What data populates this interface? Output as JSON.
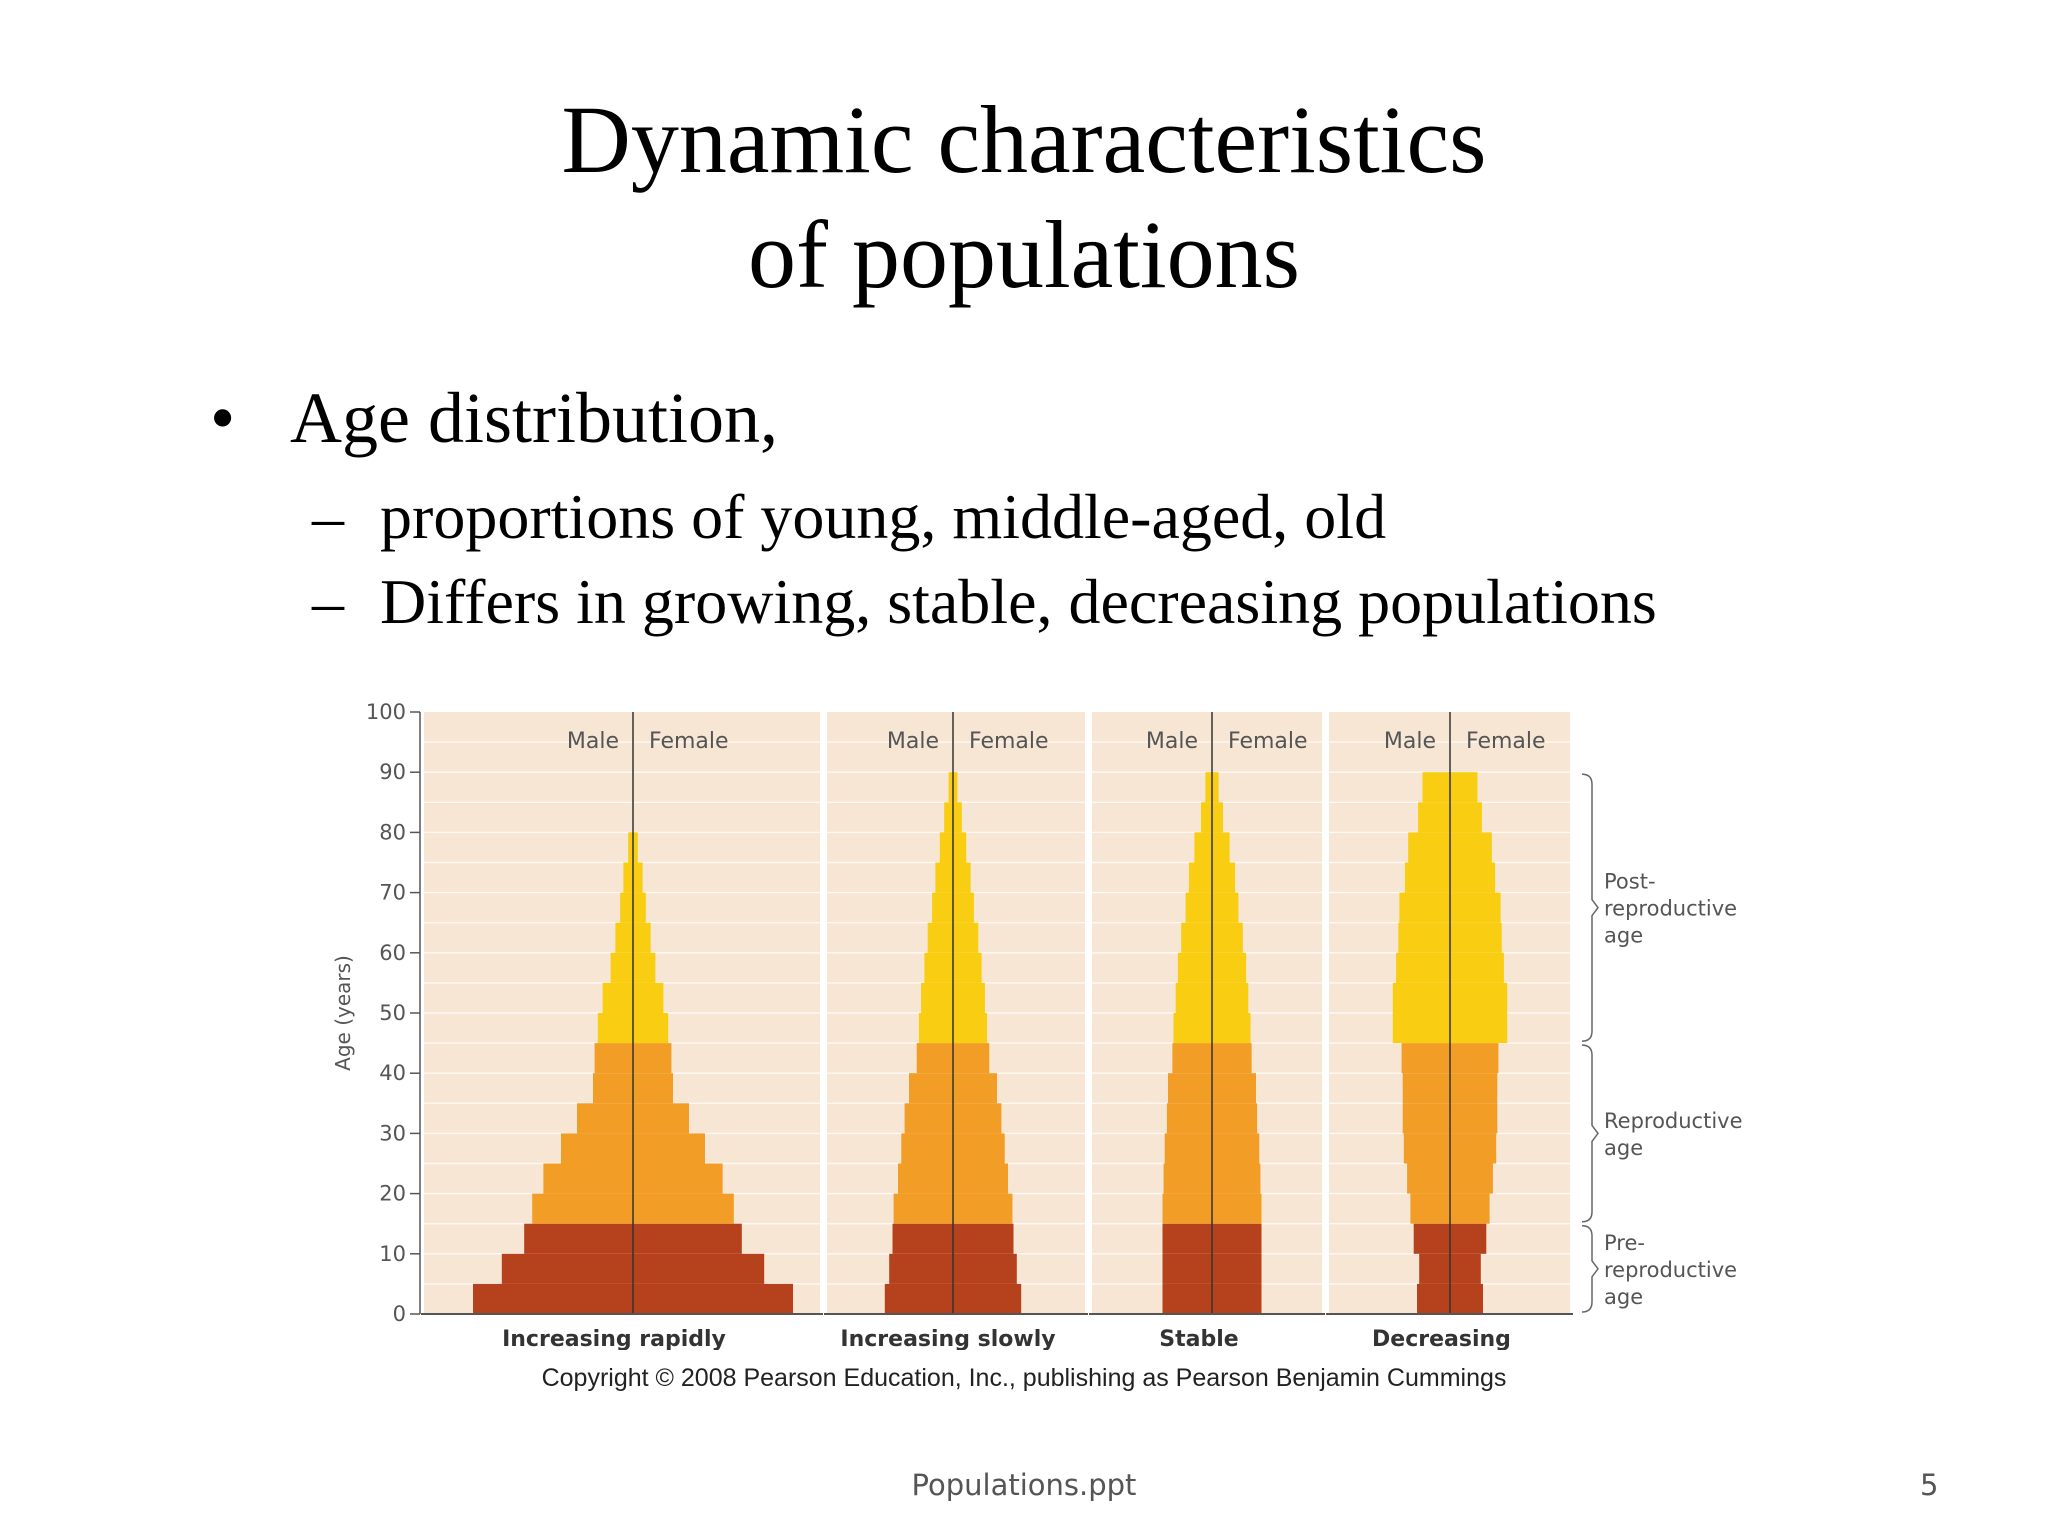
{
  "slide": {
    "title_line1": "Dynamic characteristics",
    "title_line2": "of populations",
    "bullet_mark": "•",
    "bullet": "Age distribution,",
    "dash_mark": "–",
    "sub_bullets": [
      "proportions of young, middle-aged, old",
      "Differs in growing, stable, decreasing populations"
    ],
    "copyright": "Copyright © 2008 Pearson Education, Inc., publishing as Pearson Benjamin Cummings",
    "footer": "Populations.ppt",
    "page_number": "5"
  },
  "chart_data": {
    "type": "bar",
    "subtype": "population-pyramid",
    "ylabel": "Age (years)",
    "ylim": [
      0,
      100
    ],
    "yticks": [
      0,
      10,
      20,
      30,
      40,
      50,
      60,
      70,
      80,
      90,
      100
    ],
    "age_groups": [
      "0-5",
      "5-10",
      "10-15",
      "15-20",
      "20-25",
      "25-30",
      "30-35",
      "35-40",
      "40-45",
      "45-50",
      "50-55",
      "55-60",
      "60-65",
      "65-70",
      "70-75",
      "75-80",
      "80-85",
      "85-90"
    ],
    "half_width_units": "relative proportion per sex (0-1 scale, symmetric male/female)",
    "sex_labels": {
      "male": "Male",
      "female": "Female"
    },
    "colors": {
      "pre_reproductive": "#b5421c",
      "reproductive": "#f29d26",
      "post_reproductive": "#f9cd12",
      "background": "#f8e6d4",
      "axis": "#555555"
    },
    "life_stages": [
      {
        "label": "Post-\nreproductive\nage",
        "lines": [
          "Post-",
          "reproductive",
          "age"
        ],
        "range": [
          45,
          90
        ]
      },
      {
        "label": "Reproductive\nage",
        "lines": [
          "Reproductive",
          "age"
        ],
        "range": [
          15,
          45
        ]
      },
      {
        "label": "Pre-\nreproductive\nage",
        "lines": [
          "Pre-",
          "reproductive",
          "age"
        ],
        "range": [
          0,
          15
        ]
      }
    ],
    "pyramids": [
      {
        "name": "Increasing rapidly",
        "half_widths": [
          1.0,
          0.82,
          0.68,
          0.63,
          0.56,
          0.45,
          0.35,
          0.25,
          0.24,
          0.22,
          0.19,
          0.14,
          0.11,
          0.08,
          0.06,
          0.03,
          0,
          0
        ]
      },
      {
        "name": "Increasing slowly",
        "half_widths": [
          0.62,
          0.58,
          0.55,
          0.54,
          0.5,
          0.47,
          0.44,
          0.4,
          0.33,
          0.31,
          0.29,
          0.26,
          0.23,
          0.19,
          0.16,
          0.12,
          0.08,
          0.04
        ]
      },
      {
        "name": "Stable",
        "half_widths": [
          0.45,
          0.45,
          0.45,
          0.45,
          0.44,
          0.43,
          0.41,
          0.4,
          0.36,
          0.35,
          0.33,
          0.31,
          0.28,
          0.24,
          0.21,
          0.16,
          0.1,
          0.06
        ]
      },
      {
        "name": "Decreasing",
        "half_widths": [
          0.3,
          0.28,
          0.33,
          0.36,
          0.39,
          0.42,
          0.43,
          0.43,
          0.44,
          0.52,
          0.52,
          0.49,
          0.47,
          0.46,
          0.41,
          0.38,
          0.29,
          0.25
        ]
      }
    ]
  }
}
